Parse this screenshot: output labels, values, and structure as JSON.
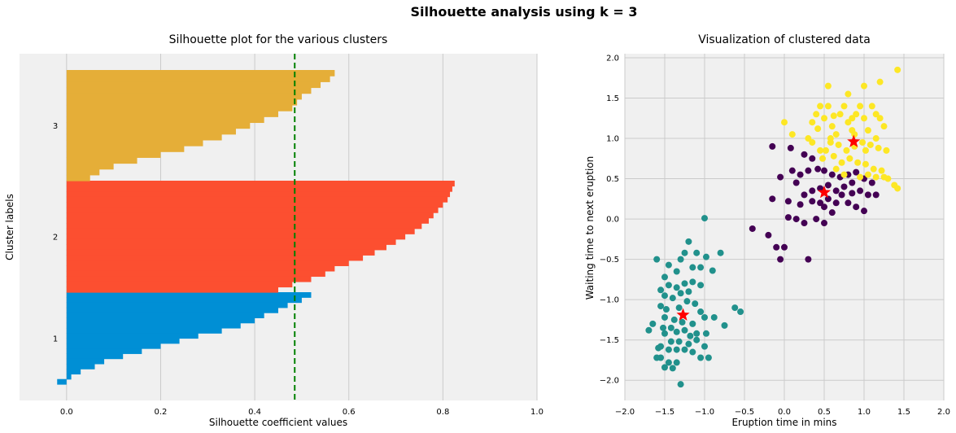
{
  "figure": {
    "suptitle": "Silhouette analysis using k = 3"
  },
  "chart_data": [
    {
      "type": "bar",
      "orientation": "horizontal-silhouette",
      "title": "Silhouette plot for the various clusters",
      "xlabel": "Silhouette coefficient values",
      "ylabel": "Cluster labels",
      "xlim": [
        -0.1,
        1.0
      ],
      "xticks": [
        "0.0",
        "0.2",
        "0.4",
        "0.6",
        "0.8",
        "1.0"
      ],
      "average_silhouette": 0.485,
      "average_line_color": "#008000",
      "grid": true,
      "clusters": [
        {
          "label": "1",
          "color": "#008fd5",
          "values": [
            0.52,
            0.5,
            0.47,
            0.45,
            0.42,
            0.4,
            0.37,
            0.33,
            0.28,
            0.24,
            0.2,
            0.16,
            0.12,
            0.08,
            0.06,
            0.03,
            0.01,
            -0.02
          ]
        },
        {
          "label": "2",
          "color": "#fc4f30",
          "values": [
            0.825,
            0.82,
            0.815,
            0.81,
            0.8,
            0.79,
            0.78,
            0.77,
            0.755,
            0.74,
            0.72,
            0.7,
            0.68,
            0.655,
            0.63,
            0.6,
            0.57,
            0.55,
            0.52,
            0.48,
            0.45
          ]
        },
        {
          "label": "3",
          "color": "#e5ae38",
          "values": [
            0.57,
            0.56,
            0.54,
            0.52,
            0.5,
            0.49,
            0.48,
            0.45,
            0.42,
            0.39,
            0.36,
            0.33,
            0.29,
            0.25,
            0.2,
            0.15,
            0.1,
            0.07,
            0.05
          ]
        }
      ]
    },
    {
      "type": "scatter",
      "title": "Visualization of clustered data",
      "xlabel": "Eruption time in mins",
      "ylabel": "Waiting time to next eruption",
      "xlim": [
        -2.0,
        2.0
      ],
      "ylim": [
        -2.25,
        2.05
      ],
      "xticks": [
        "−2.0",
        "−1.5",
        "−1.0",
        "−0.5",
        "0.0",
        "0.5",
        "1.0",
        "1.5",
        "2.0"
      ],
      "yticks": [
        "−2.0",
        "−1.5",
        "−1.0",
        "−0.5",
        "0.0",
        "0.5",
        "1.0",
        "1.5",
        "2.0"
      ],
      "grid": true,
      "series": [
        {
          "color": "#21918c",
          "points": [
            [
              -1.6,
              -0.5
            ],
            [
              -1.45,
              -0.57
            ],
            [
              -1.3,
              -0.5
            ],
            [
              -1.2,
              -0.28
            ],
            [
              -1.0,
              0.01
            ],
            [
              -1.25,
              -0.42
            ],
            [
              -1.1,
              -0.42
            ],
            [
              -0.98,
              -0.47
            ],
            [
              -0.8,
              -0.42
            ],
            [
              -0.9,
              -0.64
            ],
            [
              -1.15,
              -0.6
            ],
            [
              -1.05,
              -0.6
            ],
            [
              -1.35,
              -0.65
            ],
            [
              -1.5,
              -0.72
            ],
            [
              -1.55,
              -0.88
            ],
            [
              -1.45,
              -0.82
            ],
            [
              -1.35,
              -0.85
            ],
            [
              -1.25,
              -0.8
            ],
            [
              -1.15,
              -0.78
            ],
            [
              -1.05,
              -0.82
            ],
            [
              -1.5,
              -0.95
            ],
            [
              -1.4,
              -0.98
            ],
            [
              -1.3,
              -0.92
            ],
            [
              -1.2,
              -0.9
            ],
            [
              -1.55,
              -1.08
            ],
            [
              -1.48,
              -1.12
            ],
            [
              -1.32,
              -1.1
            ],
            [
              -1.22,
              -1.02
            ],
            [
              -1.12,
              -1.05
            ],
            [
              -1.05,
              -1.15
            ],
            [
              -1.0,
              -1.22
            ],
            [
              -1.5,
              -1.22
            ],
            [
              -1.38,
              -1.25
            ],
            [
              -1.28,
              -1.28
            ],
            [
              -1.15,
              -1.3
            ],
            [
              -1.52,
              -1.35
            ],
            [
              -1.42,
              -1.35
            ],
            [
              -1.35,
              -1.4
            ],
            [
              -1.25,
              -1.38
            ],
            [
              -1.18,
              -1.45
            ],
            [
              -1.1,
              -1.42
            ],
            [
              -0.98,
              -1.42
            ],
            [
              -0.88,
              -1.22
            ],
            [
              -0.75,
              -1.32
            ],
            [
              -0.62,
              -1.1
            ],
            [
              -0.55,
              -1.15
            ],
            [
              -1.65,
              -1.3
            ],
            [
              -1.7,
              -1.38
            ],
            [
              -1.5,
              -1.42
            ],
            [
              -1.42,
              -1.52
            ],
            [
              -1.32,
              -1.52
            ],
            [
              -1.2,
              -1.55
            ],
            [
              -1.1,
              -1.5
            ],
            [
              -1.55,
              -1.58
            ],
            [
              -1.45,
              -1.62
            ],
            [
              -1.35,
              -1.62
            ],
            [
              -1.25,
              -1.62
            ],
            [
              -1.15,
              -1.65
            ],
            [
              -1.05,
              -1.72
            ],
            [
              -1.55,
              -1.72
            ],
            [
              -1.45,
              -1.78
            ],
            [
              -1.35,
              -1.78
            ],
            [
              -1.5,
              -1.84
            ],
            [
              -1.4,
              -1.85
            ],
            [
              -1.3,
              -2.05
            ],
            [
              -1.6,
              -1.72
            ],
            [
              -1.58,
              -1.6
            ],
            [
              -1.0,
              -1.58
            ],
            [
              -0.95,
              -1.72
            ]
          ]
        },
        {
          "color": "#440154",
          "points": [
            [
              -0.15,
              0.9
            ],
            [
              0.08,
              0.88
            ],
            [
              0.25,
              0.8
            ],
            [
              0.35,
              0.75
            ],
            [
              -0.05,
              0.52
            ],
            [
              0.1,
              0.6
            ],
            [
              0.2,
              0.55
            ],
            [
              0.3,
              0.6
            ],
            [
              0.42,
              0.62
            ],
            [
              0.5,
              0.6
            ],
            [
              0.6,
              0.55
            ],
            [
              0.7,
              0.52
            ],
            [
              0.8,
              0.55
            ],
            [
              0.9,
              0.58
            ],
            [
              1.0,
              0.5
            ],
            [
              1.1,
              0.45
            ],
            [
              1.15,
              0.3
            ],
            [
              0.15,
              0.45
            ],
            [
              0.25,
              0.3
            ],
            [
              0.35,
              0.35
            ],
            [
              0.45,
              0.38
            ],
            [
              0.55,
              0.42
            ],
            [
              0.65,
              0.35
            ],
            [
              0.75,
              0.4
            ],
            [
              0.85,
              0.32
            ],
            [
              0.95,
              0.35
            ],
            [
              1.05,
              0.3
            ],
            [
              -0.15,
              0.25
            ],
            [
              0.05,
              0.22
            ],
            [
              0.2,
              0.18
            ],
            [
              0.35,
              0.22
            ],
            [
              0.45,
              0.2
            ],
            [
              0.55,
              0.25
            ],
            [
              0.65,
              0.2
            ],
            [
              0.8,
              0.2
            ],
            [
              0.9,
              0.15
            ],
            [
              1.0,
              0.1
            ],
            [
              0.05,
              0.02
            ],
            [
              0.15,
              0.0
            ],
            [
              0.25,
              -0.05
            ],
            [
              0.4,
              0.0
            ],
            [
              0.5,
              -0.05
            ],
            [
              -0.4,
              -0.12
            ],
            [
              -0.2,
              -0.2
            ],
            [
              -0.1,
              -0.35
            ],
            [
              0.0,
              -0.35
            ],
            [
              -0.05,
              -0.5
            ],
            [
              0.3,
              -0.5
            ],
            [
              0.5,
              0.15
            ],
            [
              0.6,
              0.08
            ],
            [
              0.72,
              0.3
            ],
            [
              0.85,
              0.45
            ]
          ]
        },
        {
          "color": "#fde725",
          "points": [
            [
              0.0,
              1.2
            ],
            [
              0.1,
              1.05
            ],
            [
              0.3,
              1.0
            ],
            [
              0.35,
              1.2
            ],
            [
              0.4,
              1.3
            ],
            [
              0.45,
              1.4
            ],
            [
              0.5,
              1.25
            ],
            [
              0.55,
              1.4
            ],
            [
              0.6,
              1.15
            ],
            [
              0.65,
              1.05
            ],
            [
              0.7,
              1.3
            ],
            [
              0.75,
              1.4
            ],
            [
              0.8,
              1.2
            ],
            [
              0.85,
              1.1
            ],
            [
              0.9,
              1.3
            ],
            [
              0.95,
              1.4
            ],
            [
              1.0,
              1.25
            ],
            [
              1.05,
              1.1
            ],
            [
              1.1,
              1.4
            ],
            [
              1.15,
              1.3
            ],
            [
              1.2,
              1.25
            ],
            [
              0.55,
              1.65
            ],
            [
              0.8,
              1.55
            ],
            [
              1.0,
              1.65
            ],
            [
              1.2,
              1.7
            ],
            [
              1.42,
              1.85
            ],
            [
              0.42,
              1.12
            ],
            [
              0.58,
              1.0
            ],
            [
              0.68,
              0.92
            ],
            [
              0.78,
              0.85
            ],
            [
              0.88,
              0.9
            ],
            [
              0.98,
              0.95
            ],
            [
              1.08,
              0.92
            ],
            [
              1.18,
              0.88
            ],
            [
              1.28,
              0.85
            ],
            [
              0.48,
              0.75
            ],
            [
              0.62,
              0.78
            ],
            [
              0.72,
              0.7
            ],
            [
              0.82,
              0.75
            ],
            [
              0.92,
              0.7
            ],
            [
              1.02,
              0.68
            ],
            [
              1.12,
              0.62
            ],
            [
              1.22,
              0.6
            ],
            [
              1.3,
              0.5
            ],
            [
              1.38,
              0.42
            ],
            [
              1.42,
              0.38
            ],
            [
              0.52,
              0.85
            ],
            [
              0.65,
              0.62
            ],
            [
              0.75,
              0.55
            ],
            [
              0.95,
              0.52
            ],
            [
              1.05,
              0.55
            ],
            [
              1.15,
              0.52
            ],
            [
              1.25,
              0.52
            ],
            [
              0.58,
              0.95
            ],
            [
              0.88,
              1.05
            ],
            [
              1.02,
              0.85
            ],
            [
              1.15,
              1.0
            ],
            [
              0.35,
              0.95
            ],
            [
              0.45,
              0.85
            ],
            [
              0.62,
              1.28
            ],
            [
              0.85,
              1.25
            ],
            [
              1.25,
              1.15
            ]
          ]
        }
      ],
      "centroids": {
        "marker": "star",
        "color": "#ff0000",
        "points": [
          [
            -1.27,
            -1.19
          ],
          [
            0.5,
            0.33
          ],
          [
            0.87,
            0.96
          ]
        ]
      }
    }
  ]
}
